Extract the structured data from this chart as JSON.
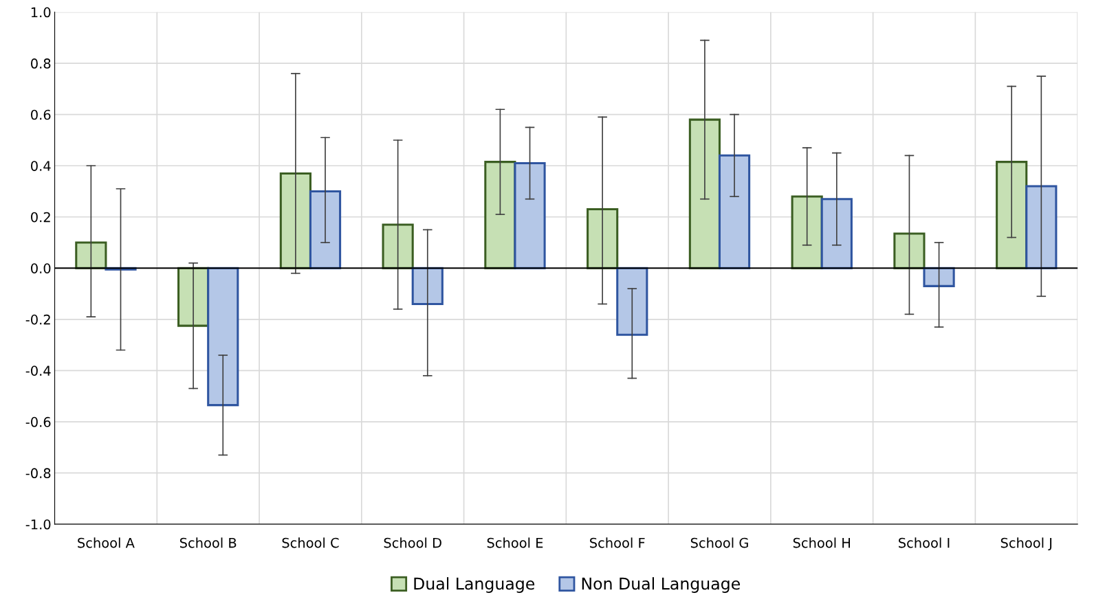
{
  "chart_data": {
    "type": "bar",
    "categories": [
      "School A",
      "School B",
      "School C",
      "School D",
      "School E",
      "School F",
      "School G",
      "School H",
      "School I",
      "School J"
    ],
    "series": [
      {
        "name": "Dual Language",
        "color": "#c6e0b4",
        "values": [
          0.1,
          -0.225,
          0.37,
          0.17,
          0.415,
          0.23,
          0.58,
          0.28,
          0.135,
          0.415
        ],
        "errors": [
          [
            -0.19,
            0.4
          ],
          [
            -0.47,
            0.02
          ],
          [
            -0.02,
            0.76
          ],
          [
            -0.16,
            0.5
          ],
          [
            0.21,
            0.62
          ],
          [
            -0.14,
            0.59
          ],
          [
            0.27,
            0.89
          ],
          [
            0.09,
            0.47
          ],
          [
            -0.18,
            0.44
          ],
          [
            0.12,
            0.71
          ]
        ]
      },
      {
        "name": "Non Dual Language",
        "color": "#b4c7e7",
        "values": [
          -0.005,
          -0.535,
          0.3,
          -0.14,
          0.41,
          -0.26,
          0.44,
          0.27,
          -0.07,
          0.32
        ],
        "errors": [
          [
            -0.32,
            0.31
          ],
          [
            -0.73,
            -0.34
          ],
          [
            0.1,
            0.51
          ],
          [
            -0.42,
            0.15
          ],
          [
            0.27,
            0.55
          ],
          [
            -0.43,
            -0.08
          ],
          [
            0.28,
            0.6
          ],
          [
            0.09,
            0.45
          ],
          [
            -0.23,
            0.1
          ],
          [
            -0.11,
            0.75
          ]
        ]
      }
    ],
    "ylim": [
      -1.0,
      1.0
    ],
    "yticks": [
      {
        "value": -1.0,
        "label": "-1.0"
      },
      {
        "value": -0.8,
        "label": "-0.8"
      },
      {
        "value": -0.6,
        "label": "-0.6"
      },
      {
        "value": -0.4,
        "label": "-0.4"
      },
      {
        "value": -0.2,
        "label": "-0.2"
      },
      {
        "value": 0.0,
        "label": "0.0"
      },
      {
        "value": 0.2,
        "label": "0.2"
      },
      {
        "value": 0.4,
        "label": "0.4"
      },
      {
        "value": 0.6,
        "label": "0.6"
      },
      {
        "value": 0.8,
        "label": "0.8"
      },
      {
        "value": 1.0,
        "label": "1.0"
      }
    ],
    "grid": true,
    "legend": "bottom"
  }
}
